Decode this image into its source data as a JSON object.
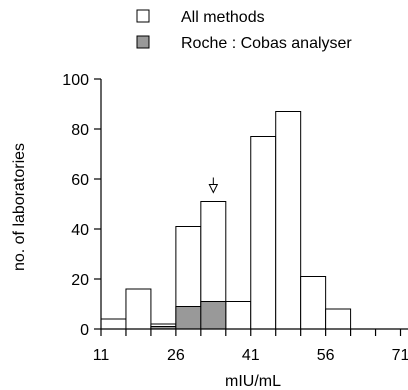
{
  "chart_data": {
    "type": "bar",
    "xlabel": "mIU/mL",
    "ylabel": "no. of laboratories",
    "xlim": [
      11,
      72.5
    ],
    "ylim": [
      0,
      100
    ],
    "bin_width": 5,
    "x_ticks": [
      "11",
      "26",
      "41",
      "56",
      "71"
    ],
    "y_ticks": [
      "0",
      "20",
      "40",
      "60",
      "80",
      "100"
    ],
    "legend_position": "top",
    "series": [
      {
        "name": "All methods",
        "color": "#ffffff",
        "bins": [
          {
            "start": 11,
            "end": 16,
            "value": 4
          },
          {
            "start": 16,
            "end": 21,
            "value": 16
          },
          {
            "start": 21,
            "end": 26,
            "value": 2
          },
          {
            "start": 26,
            "end": 31,
            "value": 41
          },
          {
            "start": 31,
            "end": 36,
            "value": 51
          },
          {
            "start": 36,
            "end": 41,
            "value": 11
          },
          {
            "start": 41,
            "end": 46,
            "value": 77
          },
          {
            "start": 46,
            "end": 51,
            "value": 87
          },
          {
            "start": 51,
            "end": 56,
            "value": 21
          },
          {
            "start": 56,
            "end": 61,
            "value": 8
          }
        ]
      },
      {
        "name": "Roche : Cobas analyser",
        "color": "#999999",
        "bins": [
          {
            "start": 21,
            "end": 26,
            "value": 1
          },
          {
            "start": 26,
            "end": 31,
            "value": 9
          },
          {
            "start": 31,
            "end": 36,
            "value": 11
          }
        ]
      }
    ],
    "annotations": [
      {
        "type": "arrow-down",
        "x": 33.5,
        "y": 55
      }
    ]
  }
}
